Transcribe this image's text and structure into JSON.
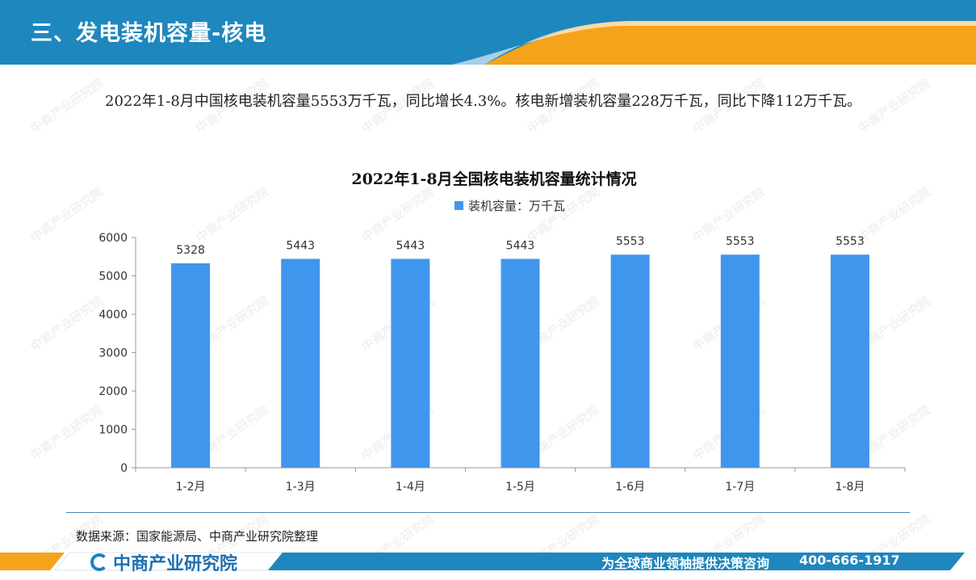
{
  "header": {
    "title": "三、发电装机容量-核电"
  },
  "intro": {
    "paragraph": "2022年1-8月中国核电装机容量5553万千瓦，同比增长4.3%。核电新增装机容量228万千瓦，同比下降112万千瓦。"
  },
  "watermark": {
    "text": "中商产业研究院"
  },
  "chart_data": {
    "type": "bar",
    "title": "2022年1-8月全国核电装机容量统计情况",
    "categories": [
      "1-2月",
      "1-3月",
      "1-4月",
      "1-5月",
      "1-6月",
      "1-7月",
      "1-8月"
    ],
    "series": [
      {
        "name": "装机容量：万千瓦",
        "values": [
          5328,
          5443,
          5443,
          5443,
          5553,
          5553,
          5553
        ]
      }
    ],
    "ylim": [
      0,
      6000
    ],
    "yticks": [
      0,
      1000,
      2000,
      3000,
      4000,
      5000,
      6000
    ],
    "grid": false,
    "legend_position": "top-center",
    "bar_color": "#4096ec"
  },
  "source": {
    "text": "数据来源：国家能源局、中商产业研究院整理"
  },
  "footer": {
    "logo_text": "中商产业研究院",
    "slogan": "为全球商业领袖提供决策咨询",
    "phone": "400-666-1917"
  },
  "colors": {
    "header_blue": "#1e87bd",
    "accent_orange": "#f5a31a",
    "footer_blue": "#1e87bd"
  }
}
